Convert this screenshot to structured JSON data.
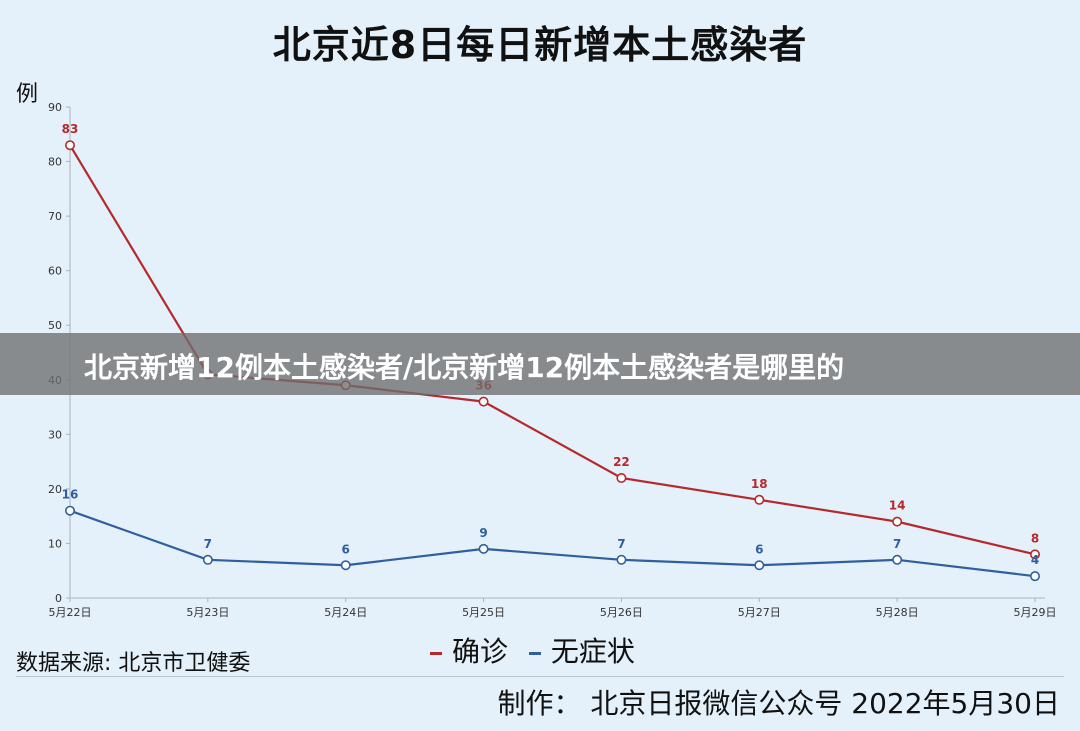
{
  "chart_data": {
    "type": "line",
    "title": "北京近8日每日新增本土感染者",
    "ylabel": "例",
    "categories": [
      "5月22日",
      "5月23日",
      "5月24日",
      "5月25日",
      "5月26日",
      "5月27日",
      "5月28日",
      "5月29日"
    ],
    "ylim": [
      0,
      90
    ],
    "yticks": [
      0,
      10,
      20,
      30,
      40,
      50,
      60,
      70,
      80,
      90
    ],
    "grid": false,
    "legend_position": "bottom-center",
    "series": [
      {
        "name": "确诊",
        "color": "#b5292c",
        "values": [
          83,
          41,
          39,
          36,
          22,
          18,
          14,
          8
        ],
        "labels": [
          "83",
          "",
          "",
          "36",
          "22",
          "18",
          "14",
          "8"
        ]
      },
      {
        "name": "无症状",
        "color": "#2f5f9e",
        "values": [
          16,
          7,
          6,
          9,
          7,
          6,
          7,
          4
        ],
        "labels": [
          "16",
          "7",
          "6",
          "9",
          "7",
          "6",
          "7",
          "4"
        ]
      }
    ]
  },
  "overlay": {
    "banner_text": "北京新增12例本土感染者/北京新增12例本土感染者是哪里的"
  },
  "footer": {
    "source": "数据来源: 北京市卫健委",
    "credit": "制作： 北京日报微信公众号 2022年5月30日"
  }
}
